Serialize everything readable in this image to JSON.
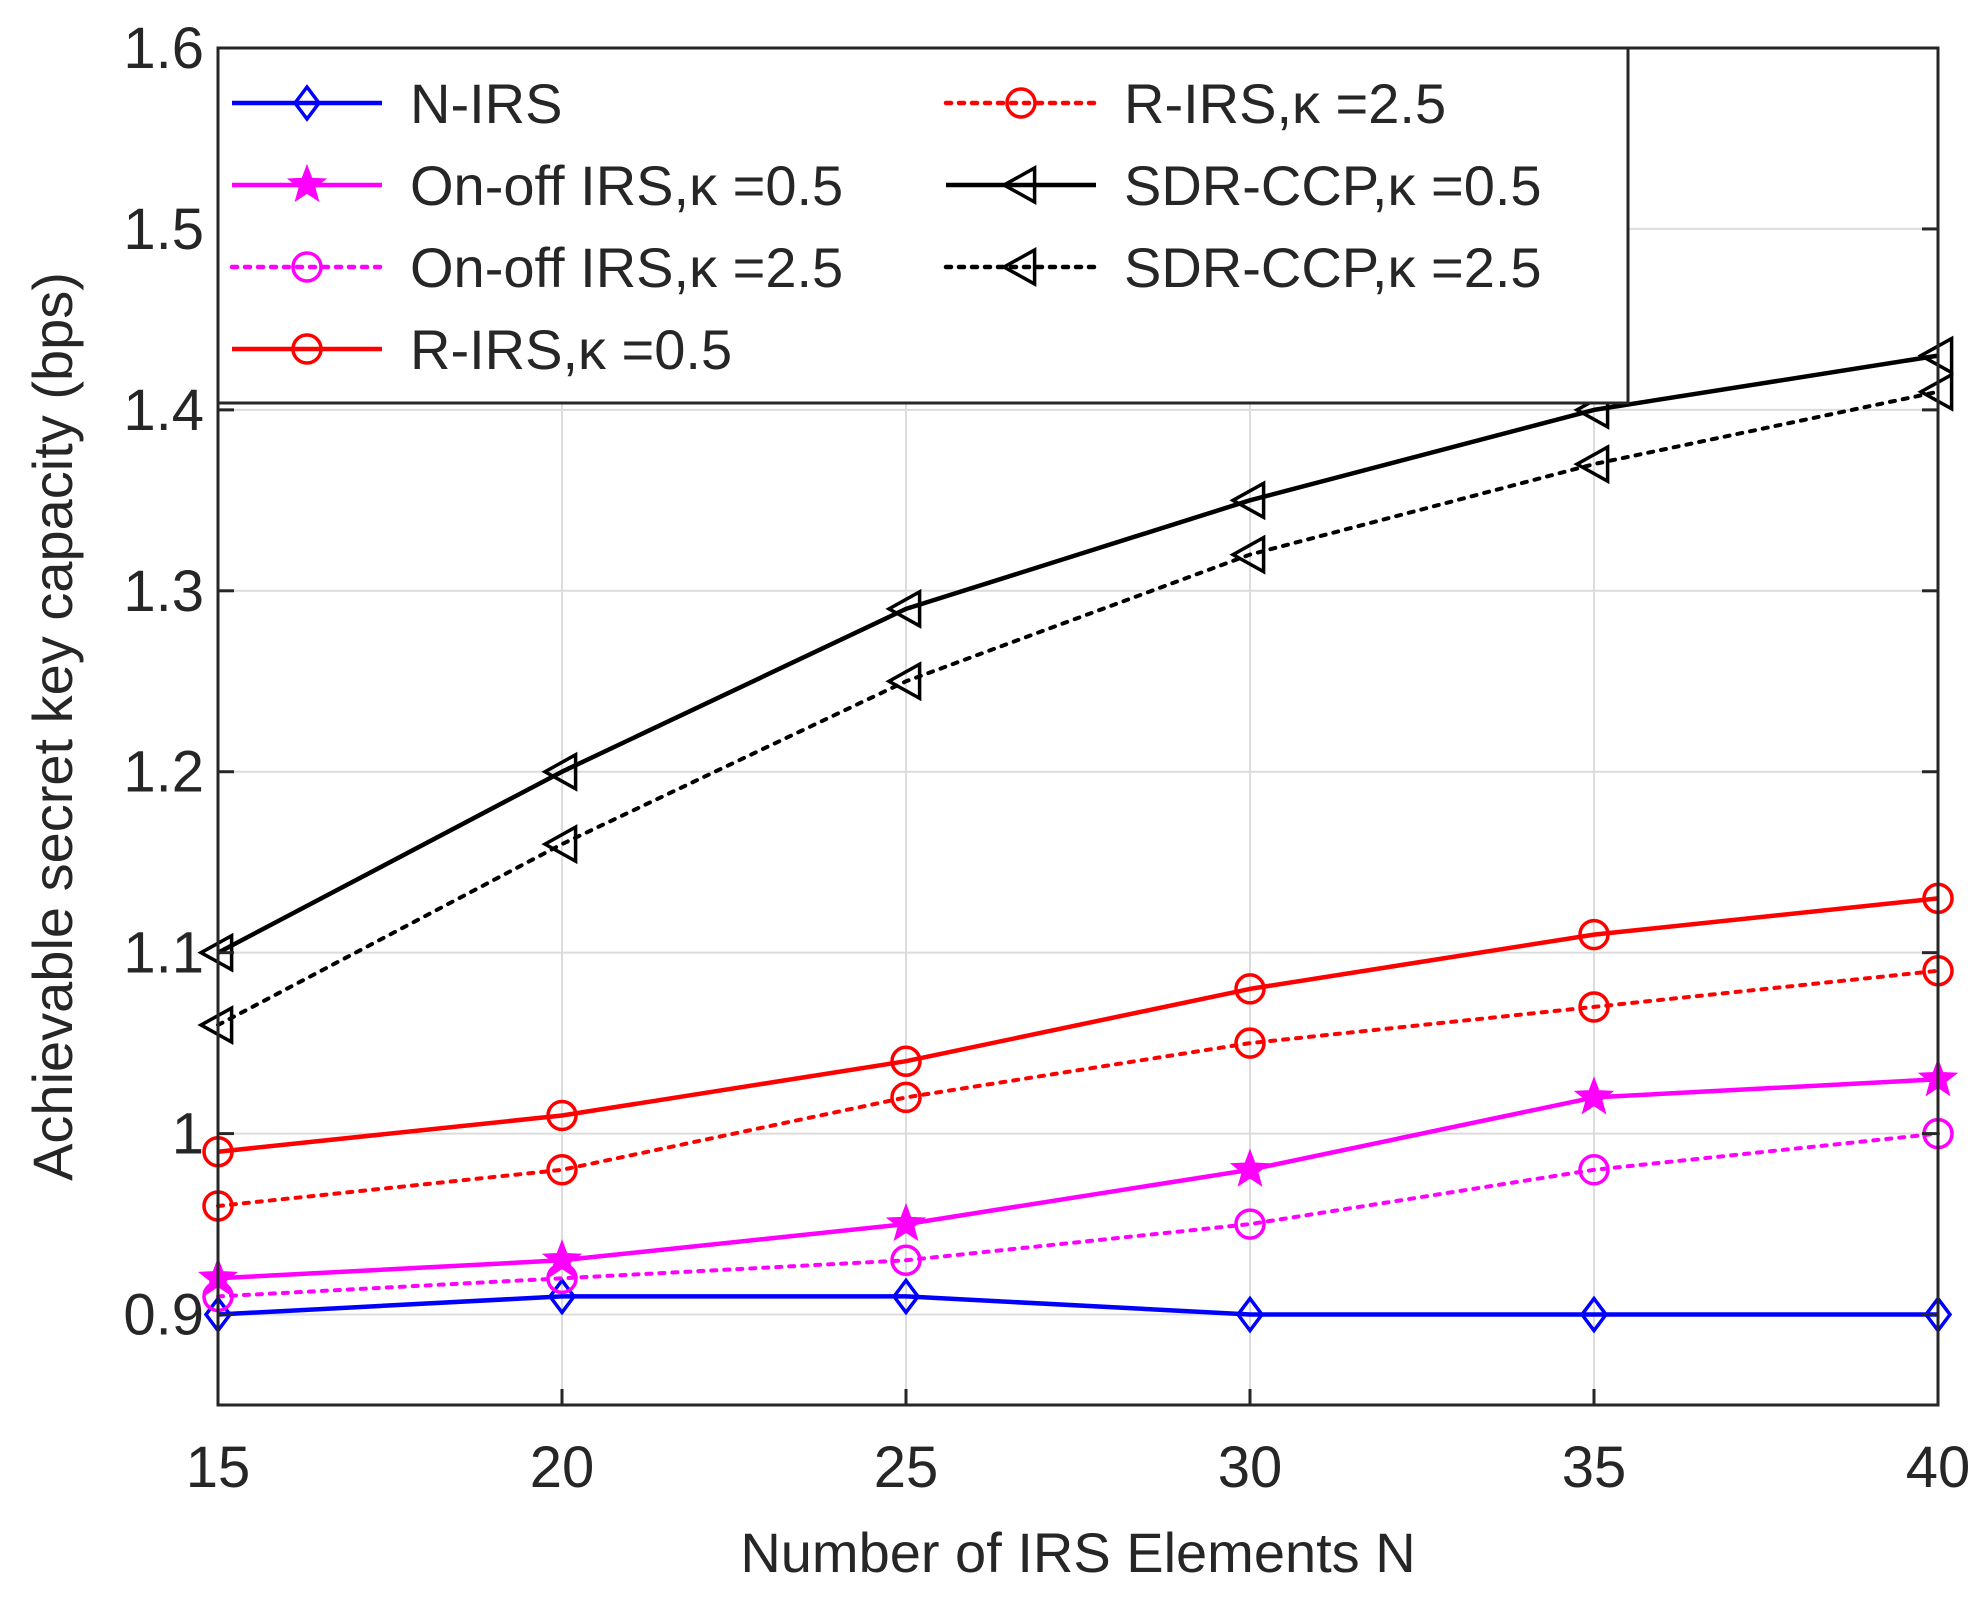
{
  "chart_data": {
    "type": "line",
    "title": "",
    "xlabel": "Number of IRS Elements N",
    "ylabel": "Achievable secret key capacity (bps)",
    "xlim": [
      15,
      40
    ],
    "ylim": [
      0.85,
      1.6
    ],
    "x": [
      15,
      20,
      25,
      30,
      35,
      40
    ],
    "xticks": [
      "15",
      "20",
      "25",
      "30",
      "35",
      "40"
    ],
    "yticks": [
      "0.9",
      "1",
      "1.1",
      "1.2",
      "1.3",
      "1.4",
      "1.5",
      "1.6"
    ],
    "ytick_values": [
      0.9,
      1.0,
      1.1,
      1.2,
      1.3,
      1.4,
      1.5,
      1.6
    ],
    "grid": true,
    "legend_position": "top",
    "series": [
      {
        "id": "n-irs",
        "name": "N-IRS",
        "color": "#0000ff",
        "style": "solid",
        "marker": "diamond",
        "values": [
          0.9,
          0.91,
          0.91,
          0.9,
          0.9,
          0.9
        ]
      },
      {
        "id": "onoff-05",
        "name": "On-off IRS,κ =0.5",
        "color": "#ff00ff",
        "style": "solid",
        "marker": "star",
        "values": [
          0.92,
          0.93,
          0.95,
          0.98,
          1.02,
          1.03
        ]
      },
      {
        "id": "onoff-25",
        "name": "On-off IRS,κ =2.5",
        "color": "#ff00ff",
        "style": "dotted",
        "marker": "circle",
        "values": [
          0.91,
          0.92,
          0.93,
          0.95,
          0.98,
          1.0
        ]
      },
      {
        "id": "rirs-05",
        "name": "R-IRS,κ =0.5",
        "color": "#ff0000",
        "style": "solid",
        "marker": "circle",
        "values": [
          0.99,
          1.01,
          1.04,
          1.08,
          1.11,
          1.13
        ]
      },
      {
        "id": "rirs-25",
        "name": "R-IRS,κ =2.5",
        "color": "#ff0000",
        "style": "dotted",
        "marker": "circle",
        "values": [
          0.96,
          0.98,
          1.02,
          1.05,
          1.07,
          1.09
        ]
      },
      {
        "id": "sdr-05",
        "name": "SDR-CCP,κ =0.5",
        "color": "#000000",
        "style": "solid",
        "marker": "triangle-left",
        "values": [
          1.1,
          1.2,
          1.29,
          1.35,
          1.4,
          1.43
        ]
      },
      {
        "id": "sdr-25",
        "name": "SDR-CCP,κ =2.5",
        "color": "#000000",
        "style": "dotted",
        "marker": "triangle-left",
        "values": [
          1.06,
          1.16,
          1.25,
          1.32,
          1.37,
          1.41
        ]
      }
    ],
    "legend_order": [
      [
        "n-irs",
        "rirs-25"
      ],
      [
        "onoff-05",
        "sdr-05"
      ],
      [
        "onoff-25",
        "sdr-25"
      ],
      [
        "rirs-05",
        null
      ]
    ]
  }
}
